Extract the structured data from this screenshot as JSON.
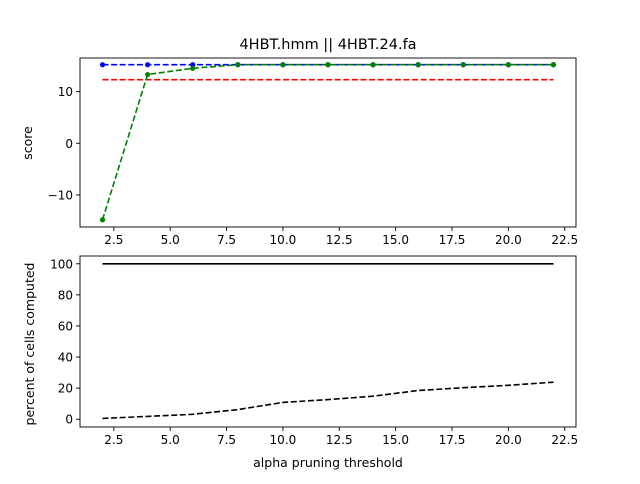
{
  "chart_data": [
    {
      "type": "line",
      "title": "4HBT.hmm || 4HBT.24.fa",
      "xlabel": "",
      "ylabel": "score",
      "xlim": [
        1.0,
        23.0
      ],
      "ylim": [
        -16.2,
        16.5
      ],
      "x_ticks": [
        2.5,
        5.0,
        7.5,
        10.0,
        12.5,
        15.0,
        17.5,
        20.0,
        22.5
      ],
      "x_tick_labels": [
        "2.5",
        "5.0",
        "7.5",
        "10.0",
        "12.5",
        "15.0",
        "17.5",
        "20.0",
        "22.5"
      ],
      "y_ticks": [
        -10,
        0,
        10
      ],
      "y_tick_labels": [
        "−10",
        "0",
        "10"
      ],
      "grid": false,
      "series": [
        {
          "color": "#0000ff",
          "style": "dashed",
          "marker": "dot",
          "x": [
            2,
            4,
            6,
            8,
            10,
            12,
            14,
            16,
            18,
            20,
            22
          ],
          "y": [
            15.2,
            15.2,
            15.2,
            15.2,
            15.2,
            15.2,
            15.2,
            15.2,
            15.2,
            15.2,
            15.2
          ]
        },
        {
          "color": "#ff0000",
          "style": "dashed",
          "marker": "none",
          "x": [
            2,
            22
          ],
          "y": [
            12.3,
            12.3
          ]
        },
        {
          "color": "#008000",
          "style": "dashed",
          "marker": "dot",
          "x": [
            2,
            4,
            6,
            8,
            10,
            12,
            14,
            16,
            18,
            20,
            22
          ],
          "y": [
            -14.8,
            13.3,
            14.5,
            15.2,
            15.2,
            15.2,
            15.2,
            15.2,
            15.2,
            15.2,
            15.2
          ]
        }
      ]
    },
    {
      "type": "line",
      "title": "",
      "xlabel": "alpha pruning threshold",
      "ylabel": "percent of cells computed",
      "xlim": [
        1.0,
        23.0
      ],
      "ylim": [
        -5,
        105
      ],
      "x_ticks": [
        2.5,
        5.0,
        7.5,
        10.0,
        12.5,
        15.0,
        17.5,
        20.0,
        22.5
      ],
      "x_tick_labels": [
        "2.5",
        "5.0",
        "7.5",
        "10.0",
        "12.5",
        "15.0",
        "17.5",
        "20.0",
        "22.5"
      ],
      "y_ticks": [
        0,
        20,
        40,
        60,
        80,
        100
      ],
      "y_tick_labels": [
        "0",
        "20",
        "40",
        "60",
        "80",
        "100"
      ],
      "grid": false,
      "series": [
        {
          "color": "#000000",
          "style": "solid",
          "marker": "none",
          "x": [
            2,
            22
          ],
          "y": [
            100,
            100
          ]
        },
        {
          "color": "#000000",
          "style": "dashed",
          "marker": "none",
          "x": [
            2,
            4,
            6,
            8,
            10,
            12,
            14,
            16,
            18,
            20,
            22
          ],
          "y": [
            0.5,
            1.8,
            3.2,
            6.2,
            10.8,
            12.6,
            14.8,
            18.5,
            20.3,
            21.8,
            23.8
          ]
        }
      ]
    }
  ]
}
